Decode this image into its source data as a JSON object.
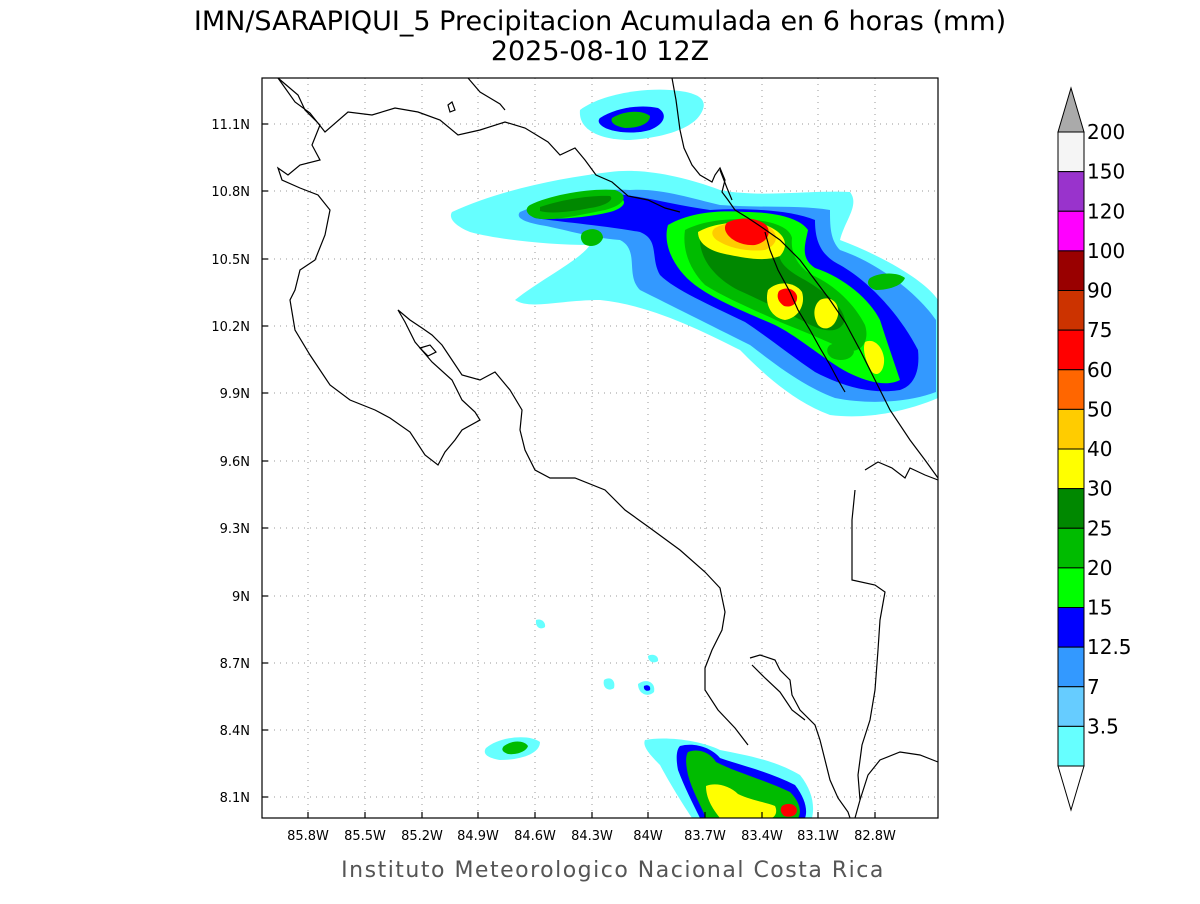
{
  "title": {
    "line1": "IMN/SARAPIQUI_5 Precipitacion Acumulada en 6 horas (mm)",
    "line2": "2025-08-10 12Z"
  },
  "footer": "Instituto Meteorologico Nacional Costa Rica",
  "map": {
    "lon_ticks": [
      "85.8W",
      "85.5W",
      "85.2W",
      "84.9W",
      "84.6W",
      "84.3W",
      "84W",
      "83.7W",
      "83.4W",
      "83.1W",
      "82.8W"
    ],
    "lat_ticks": [
      "11.1N",
      "10.8N",
      "10.5N",
      "10.2N",
      "9.9N",
      "9.6N",
      "9.3N",
      "9N",
      "8.7N",
      "8.4N",
      "8.1N"
    ],
    "grid": "dotted"
  },
  "colorbar": {
    "labels": [
      "200",
      "150",
      "120",
      "100",
      "90",
      "75",
      "60",
      "50",
      "40",
      "30",
      "25",
      "20",
      "15",
      "12.5",
      "7",
      "3.5"
    ],
    "colors": [
      "#f5f5f5",
      "#9933cc",
      "#ff00ff",
      "#990000",
      "#cc3300",
      "#ff0000",
      "#ff6600",
      "#ffcc00",
      "#ffff00",
      "#008800",
      "#00bb00",
      "#00ff00",
      "#0000ff",
      "#3399ff",
      "#66ccff",
      "#66ffff"
    ],
    "over_color": "#aaaaaa"
  }
}
